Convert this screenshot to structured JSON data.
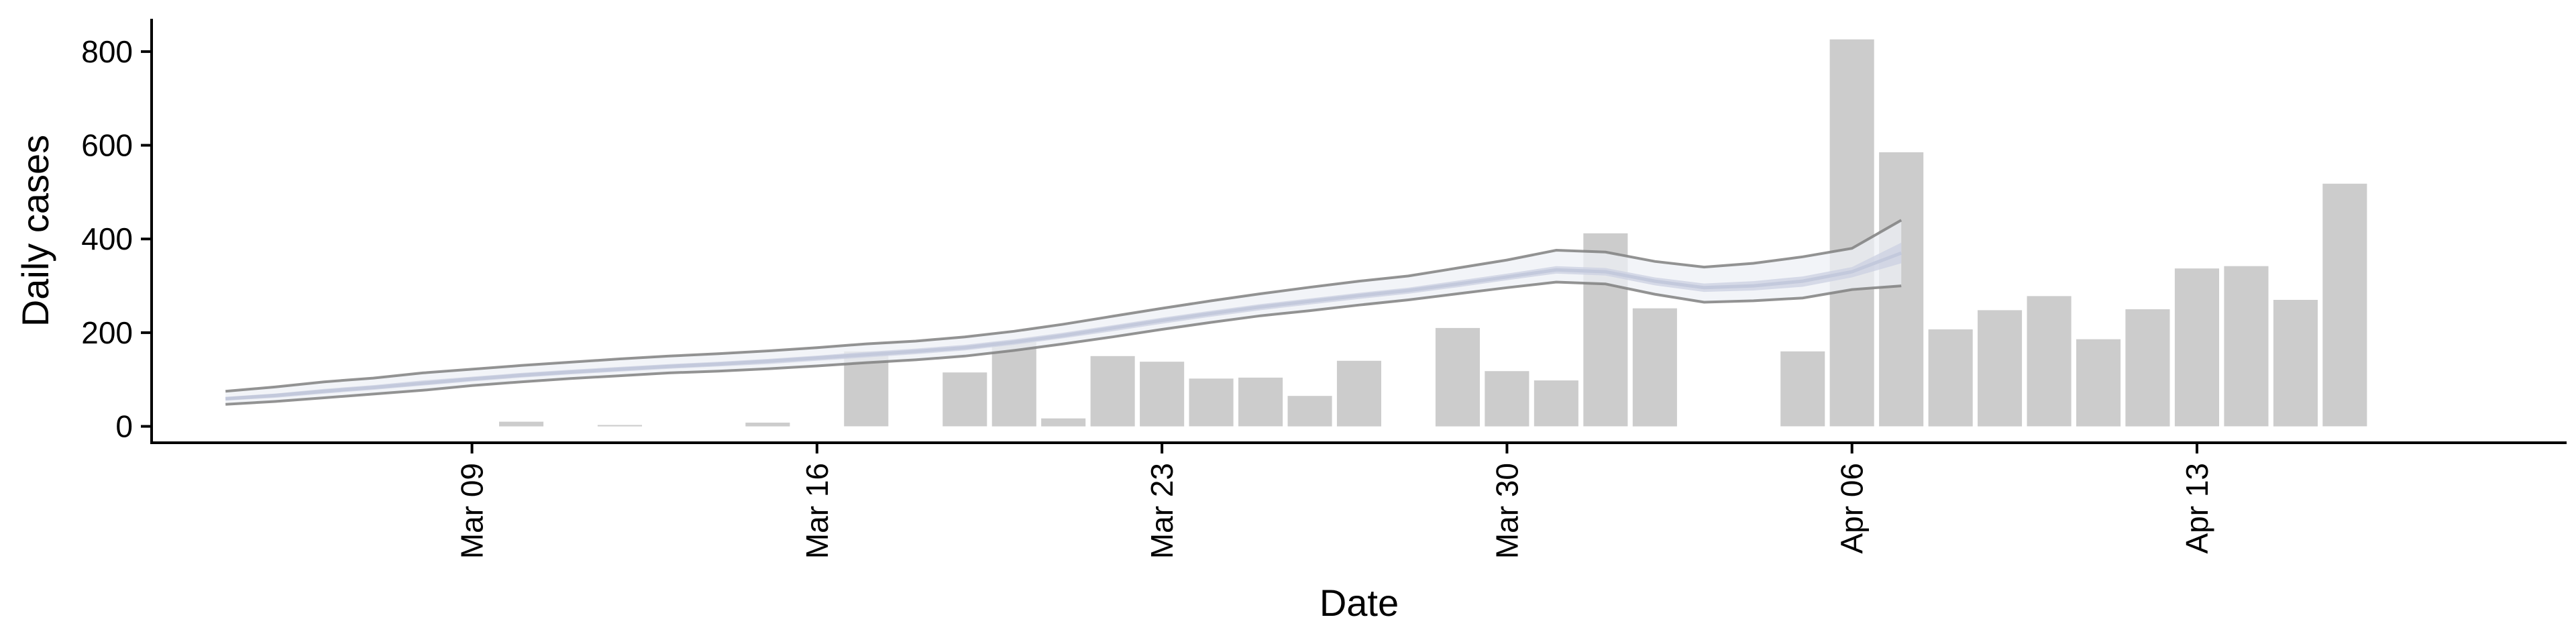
{
  "chart_data": {
    "type": "bar",
    "title": "",
    "xlabel": "Date",
    "ylabel": "Daily cases",
    "x_tick_labels": [
      "Mar 09",
      "Mar 16",
      "Mar 23",
      "Mar 30",
      "Apr 06",
      "Apr 13"
    ],
    "x_tick_dates": [
      "2020-03-09",
      "2020-03-16",
      "2020-03-23",
      "2020-03-30",
      "2020-04-06",
      "2020-04-13"
    ],
    "y_tick_values": [
      0,
      200,
      400,
      600,
      800
    ],
    "ylim": [
      -35,
      870
    ],
    "xlim": [
      "2020-03-02 12:00",
      "2020-04-20 12:00"
    ],
    "grid": false,
    "colors": {
      "bars": "#cccccc",
      "band_outer_line": "#808080",
      "band_outer_fill": "#eef0f5",
      "band_inner_fill": "#cdd2e2",
      "median_line": "#c3c9dc",
      "axis": "#000000"
    },
    "bars": [
      {
        "date": "2020-03-10",
        "value": 10
      },
      {
        "date": "2020-03-12",
        "value": 3
      },
      {
        "date": "2020-03-15",
        "value": 8
      },
      {
        "date": "2020-03-17",
        "value": 160
      },
      {
        "date": "2020-03-19",
        "value": 115
      },
      {
        "date": "2020-03-20",
        "value": 180
      },
      {
        "date": "2020-03-21",
        "value": 17
      },
      {
        "date": "2020-03-22",
        "value": 150
      },
      {
        "date": "2020-03-23",
        "value": 138
      },
      {
        "date": "2020-03-24",
        "value": 102
      },
      {
        "date": "2020-03-25",
        "value": 104
      },
      {
        "date": "2020-03-26",
        "value": 65
      },
      {
        "date": "2020-03-27",
        "value": 140
      },
      {
        "date": "2020-03-29",
        "value": 210
      },
      {
        "date": "2020-03-30",
        "value": 118
      },
      {
        "date": "2020-03-31",
        "value": 98
      },
      {
        "date": "2020-04-01",
        "value": 412
      },
      {
        "date": "2020-04-02",
        "value": 252
      },
      {
        "date": "2020-04-05",
        "value": 160
      },
      {
        "date": "2020-04-06",
        "value": 826
      },
      {
        "date": "2020-04-07",
        "value": 585
      },
      {
        "date": "2020-04-08",
        "value": 207
      },
      {
        "date": "2020-04-09",
        "value": 248
      },
      {
        "date": "2020-04-10",
        "value": 278
      },
      {
        "date": "2020-04-11",
        "value": 186
      },
      {
        "date": "2020-04-12",
        "value": 250
      },
      {
        "date": "2020-04-13",
        "value": 337
      },
      {
        "date": "2020-04-14",
        "value": 342
      },
      {
        "date": "2020-04-15",
        "value": 270
      },
      {
        "date": "2020-04-16",
        "value": 518
      }
    ],
    "band": {
      "dates": [
        "2020-03-04",
        "2020-03-05",
        "2020-03-06",
        "2020-03-07",
        "2020-03-08",
        "2020-03-09",
        "2020-03-10",
        "2020-03-11",
        "2020-03-12",
        "2020-03-13",
        "2020-03-14",
        "2020-03-15",
        "2020-03-16",
        "2020-03-17",
        "2020-03-18",
        "2020-03-19",
        "2020-03-20",
        "2020-03-21",
        "2020-03-22",
        "2020-03-23",
        "2020-03-24",
        "2020-03-25",
        "2020-03-26",
        "2020-03-27",
        "2020-03-28",
        "2020-03-29",
        "2020-03-30",
        "2020-03-31",
        "2020-04-01",
        "2020-04-02",
        "2020-04-03",
        "2020-04-04",
        "2020-04-05",
        "2020-04-06",
        "2020-04-07"
      ],
      "upper_90": [
        75,
        84,
        95,
        103,
        114,
        122,
        130,
        137,
        144,
        150,
        155,
        161,
        168,
        176,
        182,
        191,
        203,
        218,
        235,
        252,
        268,
        283,
        297,
        310,
        321,
        338,
        355,
        376,
        372,
        352,
        340,
        348,
        362,
        380,
        440
      ],
      "lower_90": [
        47,
        53,
        61,
        69,
        77,
        87,
        95,
        102,
        108,
        114,
        118,
        123,
        129,
        136,
        142,
        150,
        162,
        176,
        191,
        207,
        222,
        236,
        247,
        259,
        270,
        283,
        296,
        308,
        304,
        282,
        265,
        268,
        274,
        292,
        300
      ],
      "upper_50": [
        63,
        70,
        80,
        88,
        98,
        106,
        114,
        121,
        127,
        133,
        138,
        144,
        151,
        159,
        166,
        174,
        186,
        200,
        216,
        232,
        247,
        261,
        273,
        285,
        296,
        311,
        326,
        342,
        338,
        318,
        305,
        310,
        320,
        340,
        392
      ],
      "lower_50": [
        55,
        61,
        70,
        78,
        87,
        96,
        104,
        111,
        117,
        123,
        128,
        133,
        140,
        147,
        154,
        162,
        174,
        188,
        203,
        219,
        234,
        248,
        260,
        272,
        283,
        297,
        312,
        326,
        322,
        301,
        287,
        290,
        298,
        318,
        348
      ],
      "median": [
        59,
        66,
        75,
        83,
        92,
        101,
        109,
        116,
        122,
        128,
        133,
        139,
        146,
        153,
        160,
        168,
        180,
        194,
        210,
        226,
        241,
        255,
        267,
        279,
        290,
        304,
        319,
        334,
        330,
        310,
        296,
        300,
        310,
        330,
        370
      ]
    }
  }
}
